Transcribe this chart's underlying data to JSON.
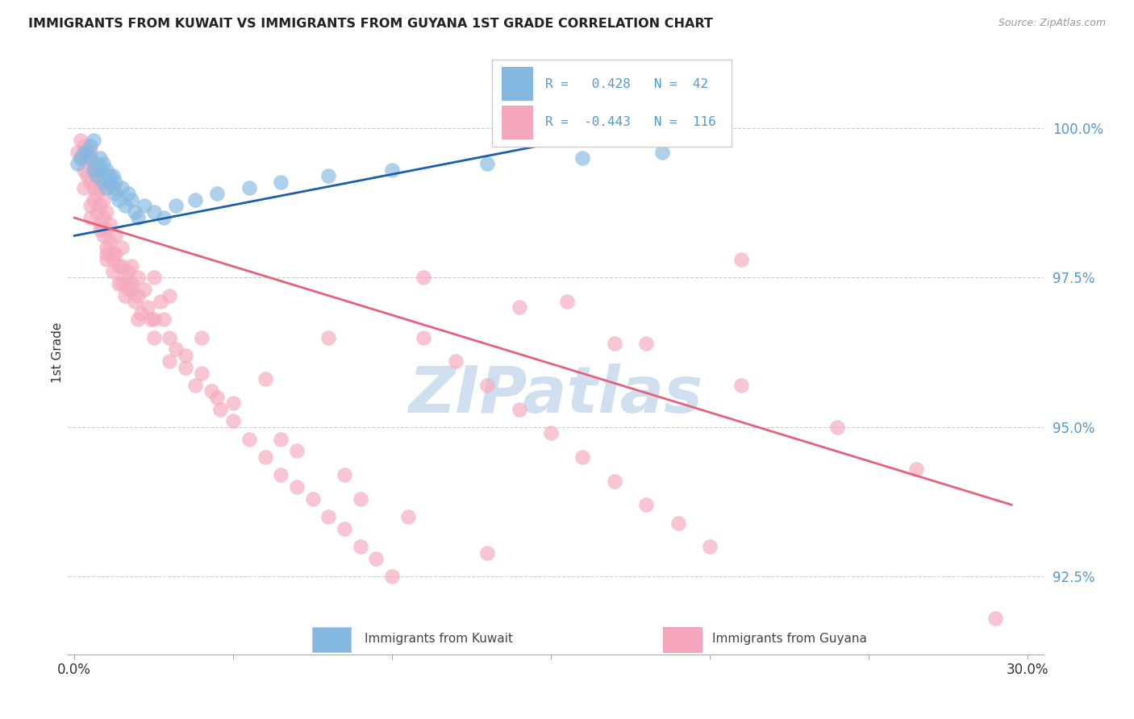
{
  "title": "IMMIGRANTS FROM KUWAIT VS IMMIGRANTS FROM GUYANA 1ST GRADE CORRELATION CHART",
  "source": "Source: ZipAtlas.com",
  "ylabel": "1st Grade",
  "y_ticks": [
    92.5,
    95.0,
    97.5,
    100.0
  ],
  "y_tick_labels": [
    "92.5%",
    "95.0%",
    "97.5%",
    "100.0%"
  ],
  "x_ticks": [
    0.0,
    0.05,
    0.1,
    0.15,
    0.2,
    0.25,
    0.3
  ],
  "x_tick_labels": [
    "0.0%",
    "",
    "",
    "",
    "",
    "",
    "30.0%"
  ],
  "xlim": [
    -0.002,
    0.305
  ],
  "ylim": [
    91.2,
    101.3
  ],
  "kuwait_R": 0.428,
  "kuwait_N": 42,
  "guyana_R": -0.443,
  "guyana_N": 116,
  "kuwait_color": "#85b8e0",
  "guyana_color": "#f5a8bc",
  "kuwait_line_color": "#1a5fa8",
  "guyana_line_color": "#e8607a",
  "watermark": "ZIPatlas",
  "watermark_color": "#d0dff0",
  "kuwait_line_x0": 0.0,
  "kuwait_line_y0": 98.2,
  "kuwait_line_x1": 0.185,
  "kuwait_line_y1": 100.1,
  "guyana_line_x0": 0.0,
  "guyana_line_y0": 98.5,
  "guyana_line_x1": 0.295,
  "guyana_line_y1": 93.7,
  "kuwait_scatter_x": [
    0.001,
    0.002,
    0.003,
    0.004,
    0.005,
    0.005,
    0.006,
    0.006,
    0.007,
    0.007,
    0.008,
    0.008,
    0.009,
    0.009,
    0.01,
    0.01,
    0.011,
    0.011,
    0.012,
    0.012,
    0.013,
    0.013,
    0.014,
    0.015,
    0.016,
    0.017,
    0.018,
    0.019,
    0.02,
    0.022,
    0.025,
    0.028,
    0.032,
    0.038,
    0.045,
    0.055,
    0.065,
    0.08,
    0.1,
    0.13,
    0.16,
    0.185
  ],
  "kuwait_scatter_y": [
    99.4,
    99.5,
    99.6,
    99.6,
    99.5,
    99.7,
    99.3,
    99.8,
    99.4,
    99.2,
    99.3,
    99.5,
    99.1,
    99.4,
    99.0,
    99.3,
    99.2,
    99.1,
    99.0,
    99.2,
    98.9,
    99.1,
    98.8,
    99.0,
    98.7,
    98.9,
    98.8,
    98.6,
    98.5,
    98.7,
    98.6,
    98.5,
    98.7,
    98.8,
    98.9,
    99.0,
    99.1,
    99.2,
    99.3,
    99.4,
    99.5,
    99.6
  ],
  "guyana_scatter_x": [
    0.001,
    0.002,
    0.002,
    0.003,
    0.003,
    0.004,
    0.004,
    0.005,
    0.005,
    0.005,
    0.006,
    0.006,
    0.006,
    0.007,
    0.007,
    0.007,
    0.008,
    0.008,
    0.008,
    0.009,
    0.009,
    0.009,
    0.01,
    0.01,
    0.01,
    0.01,
    0.011,
    0.011,
    0.012,
    0.012,
    0.013,
    0.013,
    0.014,
    0.014,
    0.015,
    0.015,
    0.016,
    0.016,
    0.017,
    0.017,
    0.018,
    0.018,
    0.019,
    0.02,
    0.02,
    0.021,
    0.022,
    0.023,
    0.024,
    0.025,
    0.027,
    0.028,
    0.03,
    0.032,
    0.035,
    0.038,
    0.04,
    0.043,
    0.046,
    0.05,
    0.055,
    0.06,
    0.065,
    0.07,
    0.075,
    0.08,
    0.085,
    0.09,
    0.095,
    0.1,
    0.11,
    0.12,
    0.13,
    0.14,
    0.15,
    0.16,
    0.17,
    0.18,
    0.19,
    0.2,
    0.21,
    0.025,
    0.03,
    0.04,
    0.06,
    0.08,
    0.003,
    0.005,
    0.008,
    0.012,
    0.018,
    0.025,
    0.035,
    0.05,
    0.07,
    0.09,
    0.11,
    0.14,
    0.17,
    0.005,
    0.01,
    0.015,
    0.02,
    0.03,
    0.045,
    0.065,
    0.085,
    0.105,
    0.13,
    0.155,
    0.18,
    0.21,
    0.24,
    0.265,
    0.29
  ],
  "guyana_scatter_y": [
    99.6,
    99.8,
    99.5,
    99.7,
    99.3,
    99.5,
    99.2,
    99.4,
    99.1,
    99.6,
    99.3,
    99.0,
    98.8,
    99.2,
    98.9,
    98.6,
    99.0,
    98.7,
    98.4,
    98.8,
    98.5,
    98.2,
    98.6,
    98.3,
    98.0,
    97.8,
    98.4,
    98.1,
    97.9,
    97.6,
    98.2,
    97.9,
    97.7,
    97.4,
    98.0,
    97.7,
    97.5,
    97.2,
    97.6,
    97.3,
    97.7,
    97.4,
    97.1,
    97.5,
    97.2,
    96.9,
    97.3,
    97.0,
    96.8,
    96.5,
    97.1,
    96.8,
    96.5,
    96.3,
    96.0,
    95.7,
    95.9,
    95.6,
    95.3,
    95.1,
    94.8,
    94.5,
    94.2,
    94.0,
    93.8,
    93.5,
    93.3,
    93.0,
    92.8,
    92.5,
    96.5,
    96.1,
    95.7,
    95.3,
    94.9,
    94.5,
    94.1,
    93.7,
    93.4,
    93.0,
    97.8,
    97.5,
    97.2,
    96.5,
    95.8,
    96.5,
    99.0,
    98.7,
    98.3,
    97.8,
    97.3,
    96.8,
    96.2,
    95.4,
    94.6,
    93.8,
    97.5,
    97.0,
    96.4,
    98.5,
    97.9,
    97.4,
    96.8,
    96.1,
    95.5,
    94.8,
    94.2,
    93.5,
    92.9,
    97.1,
    96.4,
    95.7,
    95.0,
    94.3,
    91.8
  ]
}
